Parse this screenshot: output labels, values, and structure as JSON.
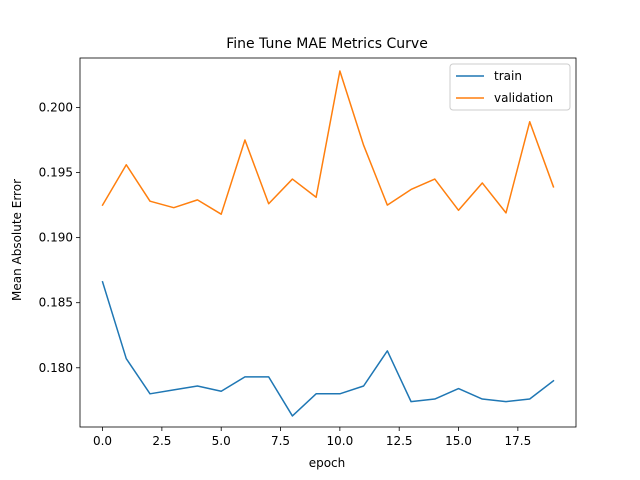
{
  "chart_data": {
    "type": "line",
    "title": "Fine Tune MAE Metrics Curve",
    "xlabel": "epoch",
    "ylabel": "Mean Absolute Error",
    "xlim": [
      -0.95,
      19.95
    ],
    "ylim": [
      0.17545,
      0.2038
    ],
    "x_ticks": [
      0,
      2.5,
      5,
      7.5,
      10,
      12.5,
      15,
      17.5
    ],
    "x_tick_labels": [
      "0.0",
      "2.5",
      "5.0",
      "7.5",
      "10.0",
      "12.5",
      "15.0",
      "17.5"
    ],
    "y_ticks": [
      0.18,
      0.185,
      0.19,
      0.195,
      0.2
    ],
    "y_tick_labels": [
      "0.180",
      "0.185",
      "0.190",
      "0.195",
      "0.200"
    ],
    "grid": false,
    "legend_position": "top-right",
    "x": [
      0,
      1,
      2,
      3,
      4,
      5,
      6,
      7,
      8,
      9,
      10,
      11,
      12,
      13,
      14,
      15,
      16,
      17,
      18,
      19
    ],
    "series": [
      {
        "name": "train",
        "color": "#1f77b4",
        "values": [
          0.1866,
          0.1807,
          0.178,
          0.1783,
          0.1786,
          0.1782,
          0.1793,
          0.1793,
          0.1763,
          0.178,
          0.178,
          0.1786,
          0.1813,
          0.1774,
          0.1776,
          0.1784,
          0.1776,
          0.1774,
          0.1776,
          0.179
        ]
      },
      {
        "name": "validation",
        "color": "#ff7f0e",
        "values": [
          0.1925,
          0.1956,
          0.1928,
          0.1923,
          0.1929,
          0.1918,
          0.1975,
          0.1926,
          0.1945,
          0.1931,
          0.2028,
          0.1971,
          0.1925,
          0.1937,
          0.1945,
          0.1921,
          0.1942,
          0.1919,
          0.1989,
          0.1939
        ]
      }
    ]
  }
}
